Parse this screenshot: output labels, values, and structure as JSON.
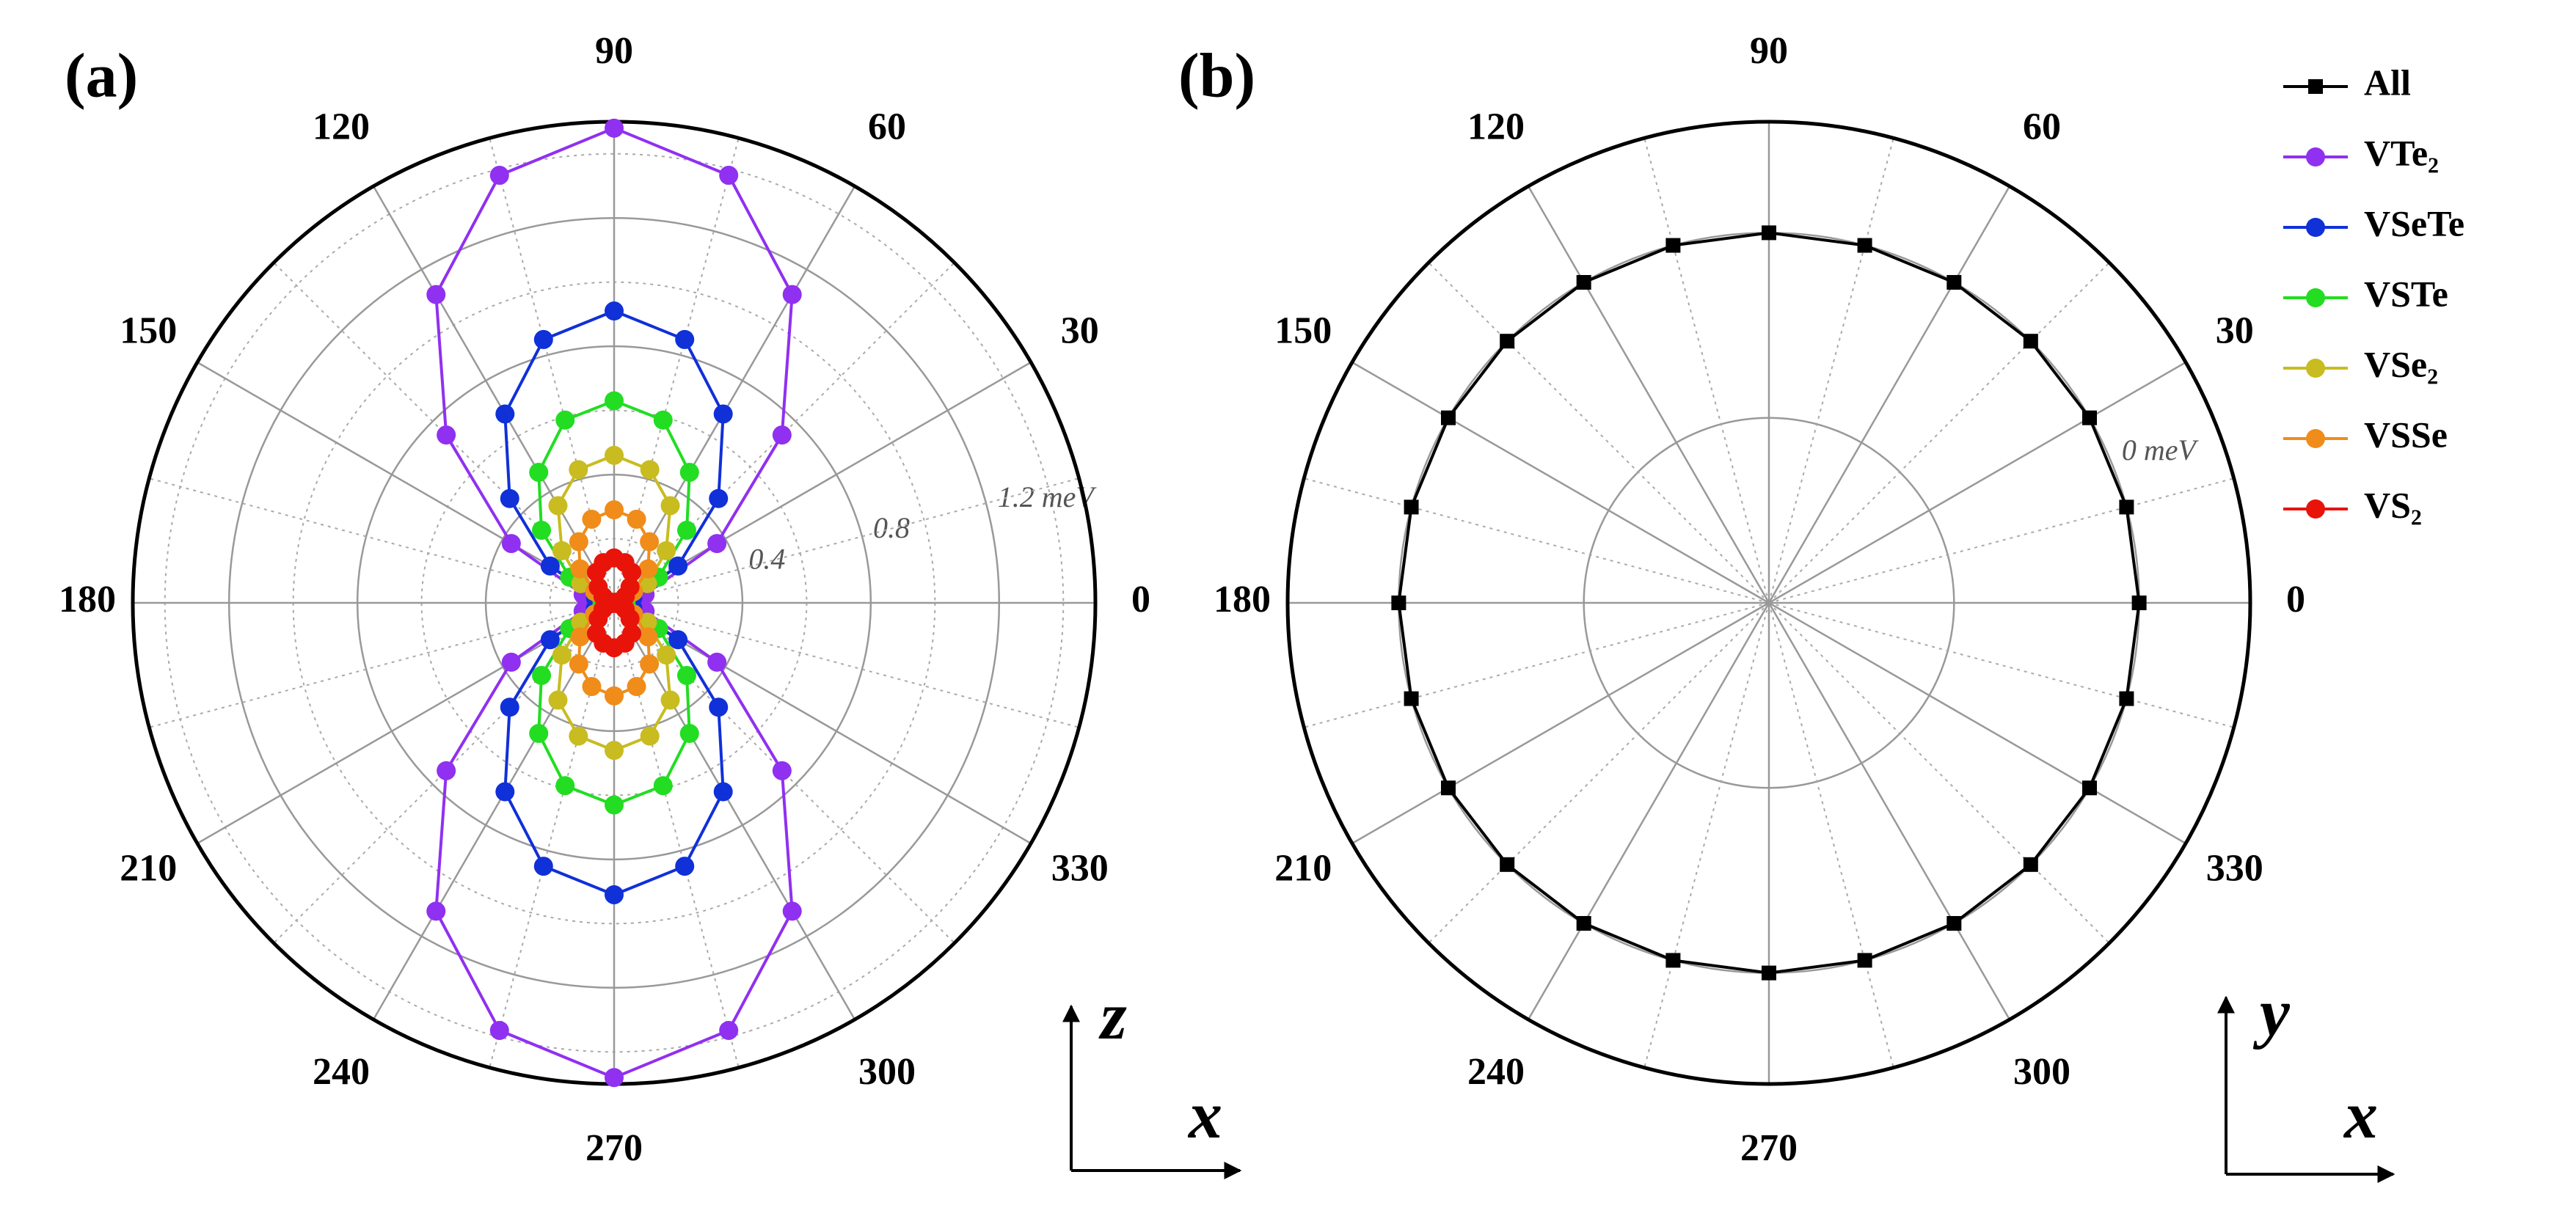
{
  "chart_data": [
    {
      "type": "polar",
      "title": "(a)",
      "x": [
        0,
        15,
        30,
        45,
        60,
        75,
        90,
        105,
        120,
        135,
        150,
        165,
        180,
        195,
        210,
        225,
        240,
        255,
        270,
        285,
        300,
        315,
        330,
        345
      ],
      "xticks": [
        0,
        30,
        60,
        90,
        120,
        150,
        180,
        210,
        240,
        270,
        300,
        330
      ],
      "xminor": [
        15,
        45,
        75,
        105,
        135,
        165,
        195,
        225,
        255,
        285,
        315,
        345
      ],
      "ylim": [
        0,
        1.5
      ],
      "yticks": [
        0.4,
        0.8,
        {
          "value": 1.2,
          "label": "1.2 meV"
        }
      ],
      "yminor": [
        0.2,
        0.6,
        1.0,
        1.4
      ],
      "x_label": "x",
      "y_label": "z",
      "series": [
        {
          "name": "VTe₂",
          "color": "#9030f0",
          "values": [
            0,
            0.1,
            0.37,
            0.74,
            1.11,
            1.38,
            1.48,
            1.38,
            1.11,
            0.74,
            0.37,
            0.1,
            0,
            0.1,
            0.37,
            0.74,
            1.11,
            1.38,
            1.48,
            1.38,
            1.11,
            0.74,
            0.37,
            0.1
          ]
        },
        {
          "name": "VSeTe",
          "color": "#1030d8",
          "values": [
            0,
            0.06,
            0.23,
            0.46,
            0.68,
            0.85,
            0.91,
            0.85,
            0.68,
            0.46,
            0.23,
            0.06,
            0,
            0.06,
            0.23,
            0.46,
            0.68,
            0.85,
            0.91,
            0.85,
            0.68,
            0.46,
            0.23,
            0.06
          ]
        },
        {
          "name": "VSTe",
          "color": "#22dd22",
          "values": [
            0,
            0.04,
            0.16,
            0.32,
            0.47,
            0.59,
            0.63,
            0.59,
            0.47,
            0.32,
            0.16,
            0.04,
            0,
            0.04,
            0.16,
            0.32,
            0.47,
            0.59,
            0.63,
            0.59,
            0.47,
            0.32,
            0.16,
            0.04
          ]
        },
        {
          "name": "VSe₂",
          "color": "#c8bc20",
          "values": [
            0,
            0.03,
            0.12,
            0.23,
            0.35,
            0.43,
            0.46,
            0.43,
            0.35,
            0.23,
            0.12,
            0.03,
            0,
            0.03,
            0.12,
            0.23,
            0.35,
            0.43,
            0.46,
            0.43,
            0.35,
            0.23,
            0.12,
            0.03
          ]
        },
        {
          "name": "VSSe",
          "color": "#f08c1a",
          "values": [
            0,
            0.02,
            0.07,
            0.15,
            0.22,
            0.27,
            0.29,
            0.27,
            0.22,
            0.15,
            0.07,
            0.02,
            0,
            0.02,
            0.07,
            0.15,
            0.22,
            0.27,
            0.29,
            0.27,
            0.22,
            0.15,
            0.07,
            0.02
          ]
        },
        {
          "name": "VS₂",
          "color": "#e8140a",
          "values": [
            0,
            0.01,
            0.04,
            0.07,
            0.11,
            0.13,
            0.14,
            0.13,
            0.11,
            0.07,
            0.04,
            0.01,
            0,
            0.01,
            0.04,
            0.07,
            0.11,
            0.13,
            0.14,
            0.13,
            0.11,
            0.07,
            0.04,
            0.01
          ]
        }
      ]
    },
    {
      "type": "polar",
      "title": "(b)",
      "x": [
        0,
        15,
        30,
        45,
        60,
        75,
        90,
        105,
        120,
        135,
        150,
        165,
        180,
        195,
        210,
        225,
        240,
        255,
        270,
        285,
        300,
        315,
        330,
        345
      ],
      "xticks": [
        0,
        30,
        60,
        90,
        120,
        150,
        180,
        210,
        240,
        270,
        300,
        330
      ],
      "xminor": [
        15,
        45,
        75,
        105,
        135,
        165,
        195,
        225,
        255,
        285,
        315,
        345
      ],
      "ylim": [
        -2,
        0.6
      ],
      "yticks": [
        {
          "value": -1,
          "label": null
        },
        {
          "value": 0,
          "label": "0 meV"
        }
      ],
      "x_label": "x",
      "y_label": "y",
      "legend": "upper right",
      "series": [
        {
          "name": "All",
          "color": "#000000",
          "marker": "square",
          "values": [
            0,
            0,
            0,
            0,
            0,
            0,
            0,
            0,
            0,
            0,
            0,
            0,
            0,
            0,
            0,
            0,
            0,
            0,
            0,
            0,
            0,
            0,
            0,
            0
          ]
        }
      ]
    }
  ]
}
